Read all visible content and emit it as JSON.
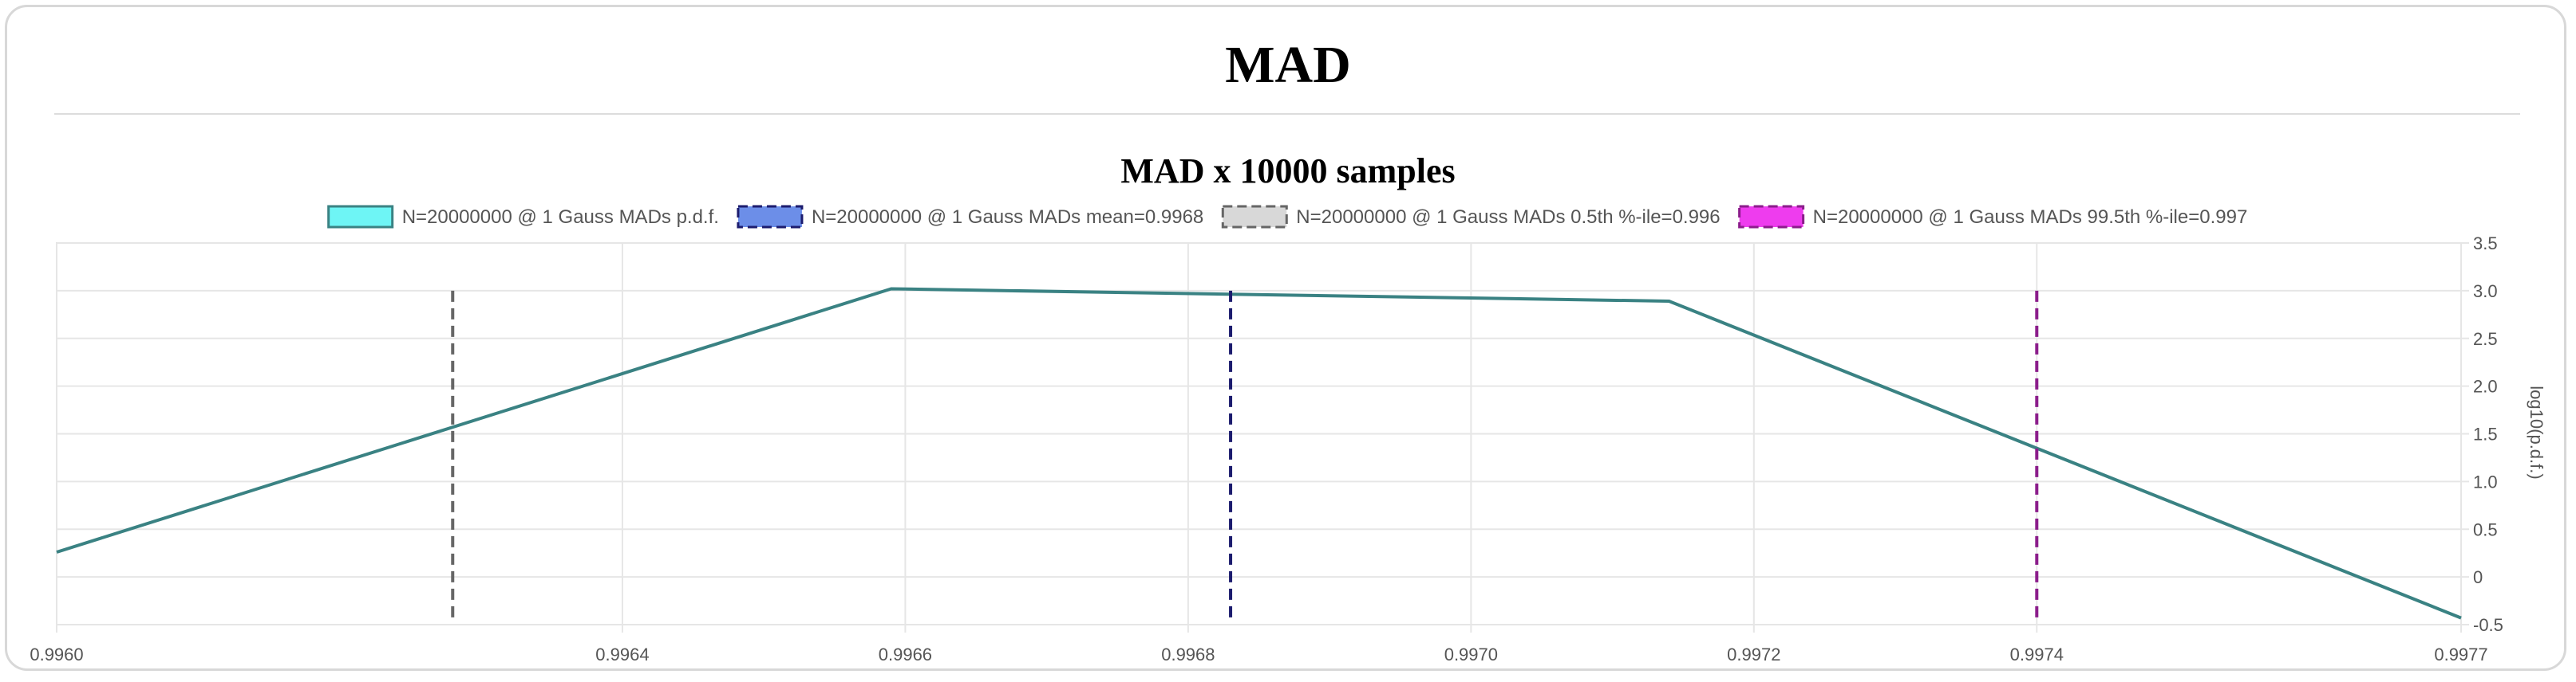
{
  "page": {
    "title": "MAD"
  },
  "chart_data": {
    "type": "line",
    "title": "MAD x 10000 samples",
    "xlabel": "",
    "ylabel": "log10(p.d.f.)",
    "xlim": [
      0.996,
      0.9977
    ],
    "ylim": [
      -0.5,
      3.5
    ],
    "x_ticks": [
      "0.9960",
      "0.9964",
      "0.9966",
      "0.9968",
      "0.9970",
      "0.9972",
      "0.9974",
      "0.9977"
    ],
    "y_ticks": [
      "3.5",
      "3.0",
      "2.5",
      "2.0",
      "1.5",
      "1.0",
      "0.5",
      "0",
      "-0.5"
    ],
    "grid": true,
    "legend_position": "top-center",
    "series": [
      {
        "name": "N=20000000 @ 1 Gauss MADs p.d.f.",
        "kind": "line",
        "color": "#3a8283",
        "legend_fill": "#6ef5f5",
        "legend_border": "#3a8283",
        "points": [
          [
            0.996,
            0.26
          ],
          [
            0.99659,
            3.02
          ],
          [
            0.99714,
            2.89
          ],
          [
            0.9977,
            -0.43
          ]
        ]
      },
      {
        "name": "N=20000000 @ 1 Gauss MADs mean=0.9968",
        "kind": "vline",
        "x": 0.99683,
        "y_range": [
          -0.45,
          3.0
        ],
        "color": "#1c1c6e",
        "legend_fill": "#6c8ee8",
        "legend_border": "#1c1c6e"
      },
      {
        "name": "N=20000000 @ 1 Gauss MADs 0.5th %-ile=0.996",
        "kind": "vline",
        "x": 0.99628,
        "y_range": [
          -0.45,
          3.0
        ],
        "color": "#666666",
        "legend_fill": "#d8d8d8",
        "legend_border": "#666666"
      },
      {
        "name": "N=20000000 @ 1 Gauss MADs 99.5th %-ile=0.997",
        "kind": "vline",
        "x": 0.9974,
        "y_range": [
          -0.45,
          3.0
        ],
        "color": "#8b1d8b",
        "legend_fill": "#ee3cee",
        "legend_border": "#8b1d8b"
      }
    ]
  }
}
